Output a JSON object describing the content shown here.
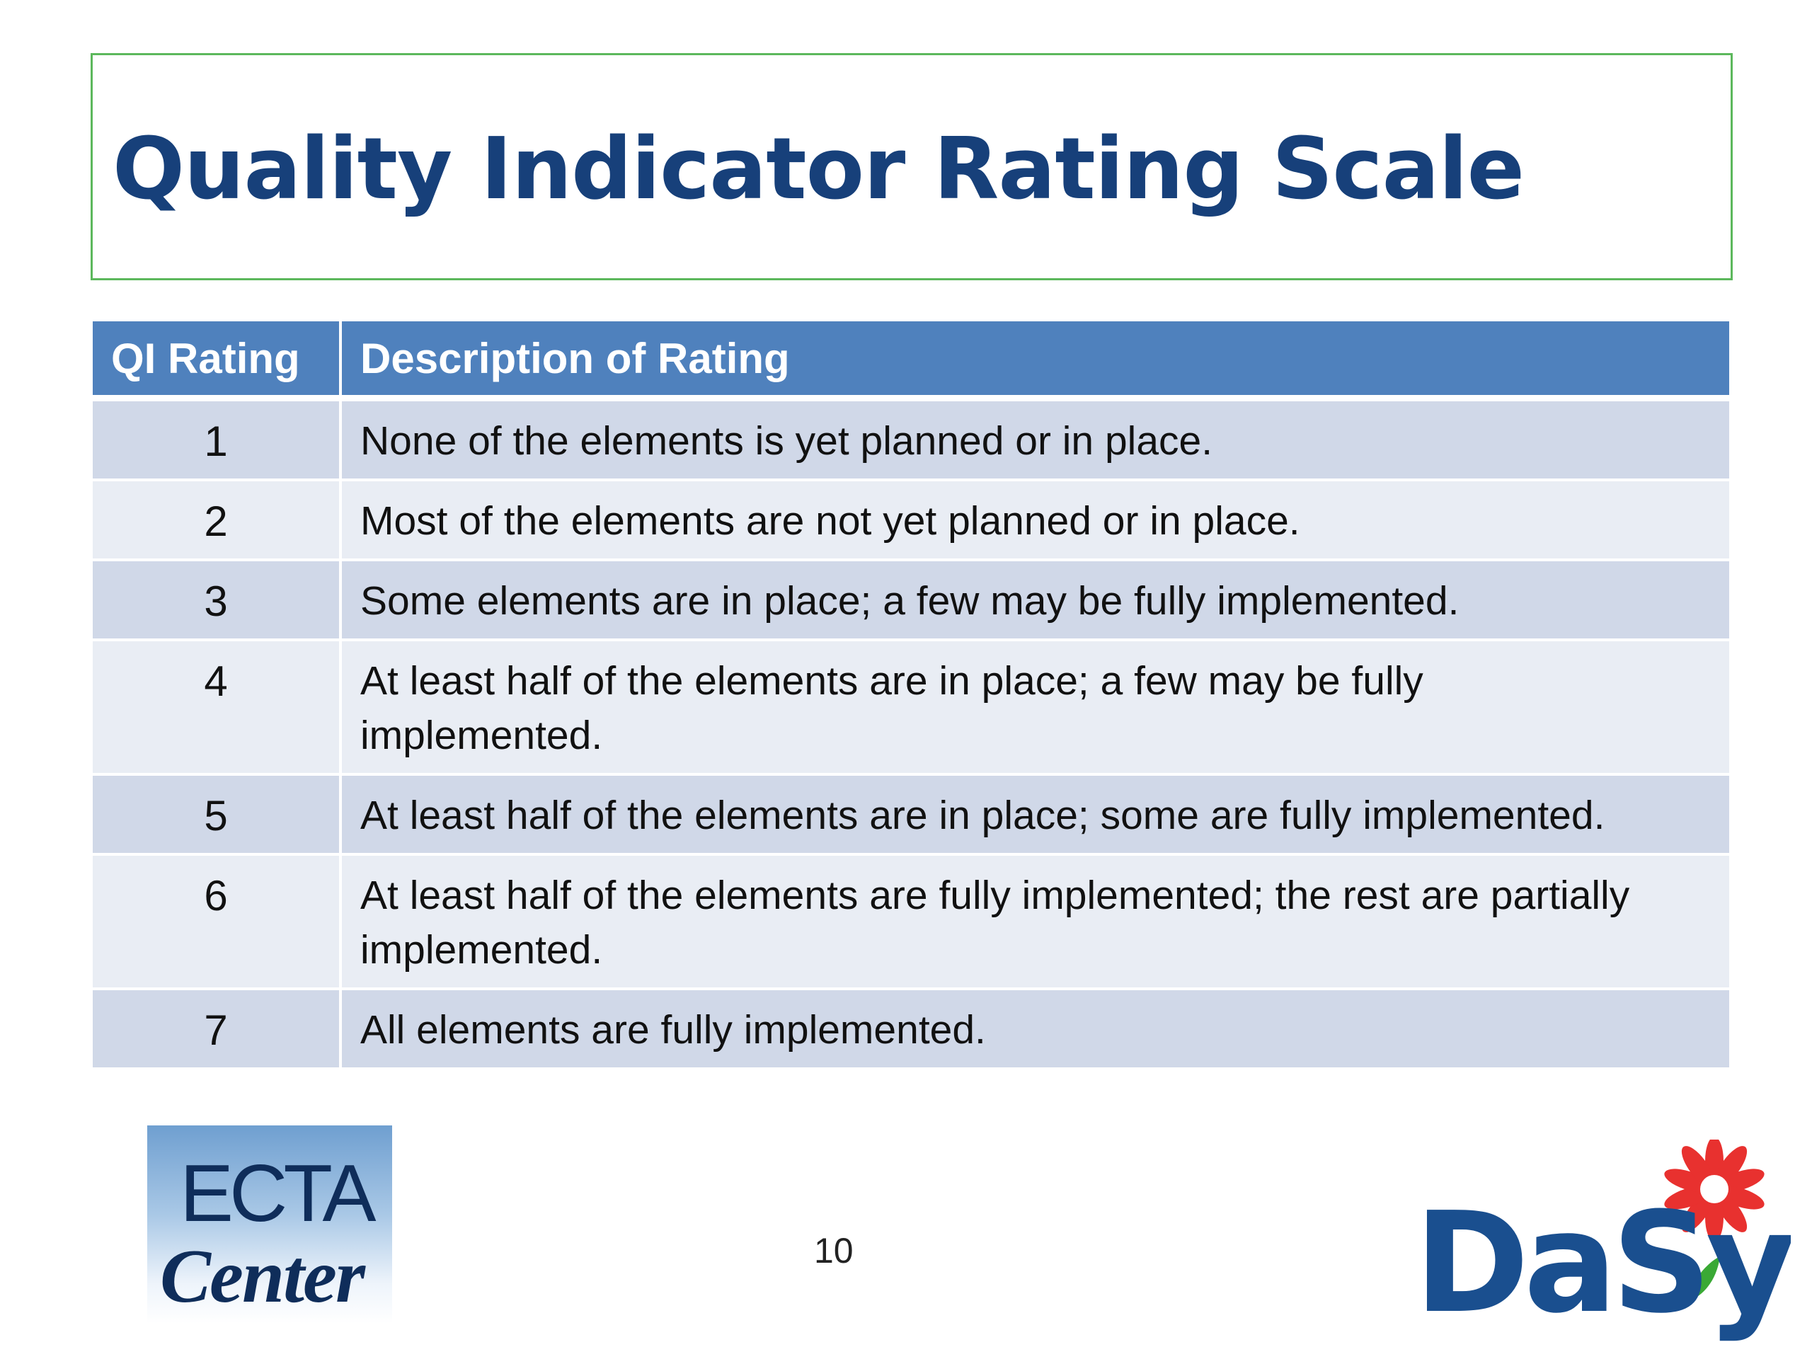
{
  "slide": {
    "title": "Quality Indicator Rating Scale",
    "page_number": "10"
  },
  "table": {
    "headers": [
      "QI Rating",
      "Description of Rating"
    ],
    "rows": [
      {
        "rating": "1",
        "description": "None of the elements is yet planned or in place."
      },
      {
        "rating": "2",
        "description": "Most of the elements are not yet planned or in place."
      },
      {
        "rating": "3",
        "description": "Some elements are in place; a few may be fully implemented."
      },
      {
        "rating": "4",
        "description": "At least half of the elements are in place; a few may be fully implemented."
      },
      {
        "rating": "5",
        "description": "At least half of the elements are in place; some are fully implemented."
      },
      {
        "rating": "6",
        "description": "At least half of the elements are fully implemented; the rest are partially implemented."
      },
      {
        "rating": "7",
        "description": "All elements are fully implemented."
      }
    ]
  },
  "logos": {
    "left": {
      "line1": "ECTA",
      "line2": "Center"
    },
    "right": {
      "text": "DaSy"
    }
  },
  "colors": {
    "title": "#17407a",
    "title_border": "#5cb85c",
    "header_bg": "#4f81bd",
    "row_odd": "#d0d8e8",
    "row_even": "#e9edf4",
    "flower": "#e8312f",
    "leaf": "#3aa935",
    "dasy_blue": "#1a4f8f"
  }
}
